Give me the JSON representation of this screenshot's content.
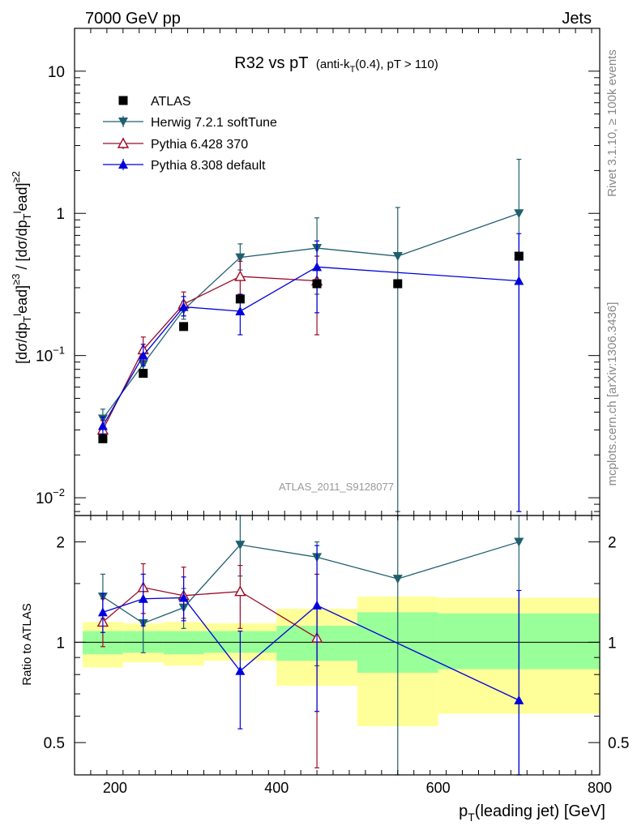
{
  "header": {
    "left": "7000 GeV pp",
    "right": "Jets"
  },
  "side_texts": {
    "top": "Rivet 3.1.10, ≥ 100k events",
    "bottom": "mcplots.cern.ch [arXiv:1306.3436]"
  },
  "watermark": "ATLAS_2011_S9128077",
  "chart_data": {
    "type": "line",
    "title_main": "R32 vs pT",
    "title_sub": "(anti-k_T(0.4), pT > 110)",
    "xlabel": "p_T(leading jet) [GeV]",
    "ylabel": "[dσ/dp_T^lead]^{≥3} / [dσ/dp_T^lead]^{≥2}",
    "ratio_ylabel": "Ratio to ATLAS",
    "xlim": [
      150,
      800
    ],
    "ylim": [
      0.0075,
      20
    ],
    "yscale": "log",
    "ratio_ylim": [
      0.4,
      2.4
    ],
    "ratio_yscale": "log",
    "xticks": [
      200,
      400,
      600,
      800
    ],
    "yticks": [
      {
        "v": 0.01,
        "base": "10",
        "exp": "−2"
      },
      {
        "v": 0.1,
        "base": "10",
        "exp": "−1"
      },
      {
        "v": 1,
        "base": "1",
        "exp": ""
      },
      {
        "v": 10,
        "base": "10",
        "exp": ""
      }
    ],
    "ratio_yticks": [
      0.5,
      1,
      2
    ],
    "legend_position": "top-left",
    "bins": [
      [
        160,
        210
      ],
      [
        210,
        260
      ],
      [
        260,
        310
      ],
      [
        310,
        400
      ],
      [
        400,
        500
      ],
      [
        500,
        600
      ],
      [
        600,
        800
      ]
    ],
    "band_yellow": [
      [
        0.84,
        1.15
      ],
      [
        0.87,
        1.14
      ],
      [
        0.85,
        1.15
      ],
      [
        0.88,
        1.14
      ],
      [
        0.74,
        1.26
      ],
      [
        0.56,
        1.37
      ],
      [
        0.61,
        1.36
      ]
    ],
    "band_green": [
      [
        0.92,
        1.08
      ],
      [
        0.93,
        1.08
      ],
      [
        0.92,
        1.08
      ],
      [
        0.93,
        1.08
      ],
      [
        0.88,
        1.12
      ],
      [
        0.81,
        1.23
      ],
      [
        0.83,
        1.22
      ]
    ],
    "series": [
      {
        "name": "ATLAS",
        "color": "#000000",
        "marker": "square",
        "line": false,
        "x": [
          185,
          235,
          285,
          355,
          450,
          550,
          700
        ],
        "y": [
          0.026,
          0.075,
          0.16,
          0.25,
          0.32,
          0.32,
          0.5
        ]
      },
      {
        "name": "Herwig 7.2.1 softTune",
        "color": "#1f5f6e",
        "marker": "triangle-down",
        "line": true,
        "x": [
          185,
          235,
          285,
          355,
          450,
          550,
          700
        ],
        "y": [
          0.036,
          0.087,
          0.21,
          0.49,
          0.57,
          0.5,
          1.0
        ],
        "yerr_lo": [
          0.031,
          0.075,
          0.18,
          0.4,
          0.27,
          0.008,
          0.008
        ],
        "yerr_hi": [
          0.042,
          0.1,
          0.24,
          0.61,
          0.93,
          1.1,
          2.4
        ],
        "ratio": [
          1.37,
          1.14,
          1.27,
          1.96,
          1.8,
          1.55,
          2.0
        ],
        "ratio_lo": [
          1.18,
          0.93,
          1.1,
          1.58,
          0.85,
          0.35,
          0.35
        ],
        "ratio_hi": [
          1.6,
          1.33,
          1.45,
          2.4,
          2.0,
          2.4,
          2.4
        ]
      },
      {
        "name": "Pythia 6.428 370",
        "color": "#9b0a26",
        "marker": "triangle-up-open",
        "line": true,
        "x": [
          185,
          235,
          285,
          355,
          450
        ],
        "y": [
          0.03,
          0.11,
          0.23,
          0.36,
          0.335
        ],
        "yerr_lo": [
          0.026,
          0.092,
          0.19,
          0.26,
          0.14
        ],
        "yerr_hi": [
          0.035,
          0.135,
          0.28,
          0.46,
          0.5
        ],
        "ratio": [
          1.15,
          1.46,
          1.38,
          1.42,
          1.03
        ],
        "ratio_lo": [
          0.97,
          1.22,
          1.18,
          1.1,
          0.42
        ],
        "ratio_hi": [
          1.35,
          1.72,
          1.68,
          1.7,
          1.6
        ]
      },
      {
        "name": "Pythia 8.308 default",
        "color": "#0000dd",
        "marker": "triangle-up",
        "line": true,
        "x": [
          185,
          235,
          285,
          355,
          450,
          700
        ],
        "y": [
          0.032,
          0.1,
          0.22,
          0.205,
          0.42,
          0.335
        ],
        "yerr_lo": [
          0.028,
          0.085,
          0.19,
          0.14,
          0.2,
          0.008
        ],
        "yerr_hi": [
          0.037,
          0.12,
          0.26,
          0.27,
          0.64,
          0.72
        ],
        "ratio": [
          1.23,
          1.35,
          1.36,
          0.82,
          1.29,
          0.67
        ],
        "ratio_lo": [
          1.07,
          1.12,
          1.16,
          0.55,
          0.62,
          0.35
        ],
        "ratio_hi": [
          1.4,
          1.6,
          1.57,
          1.08,
          1.95,
          1.43
        ]
      }
    ]
  }
}
